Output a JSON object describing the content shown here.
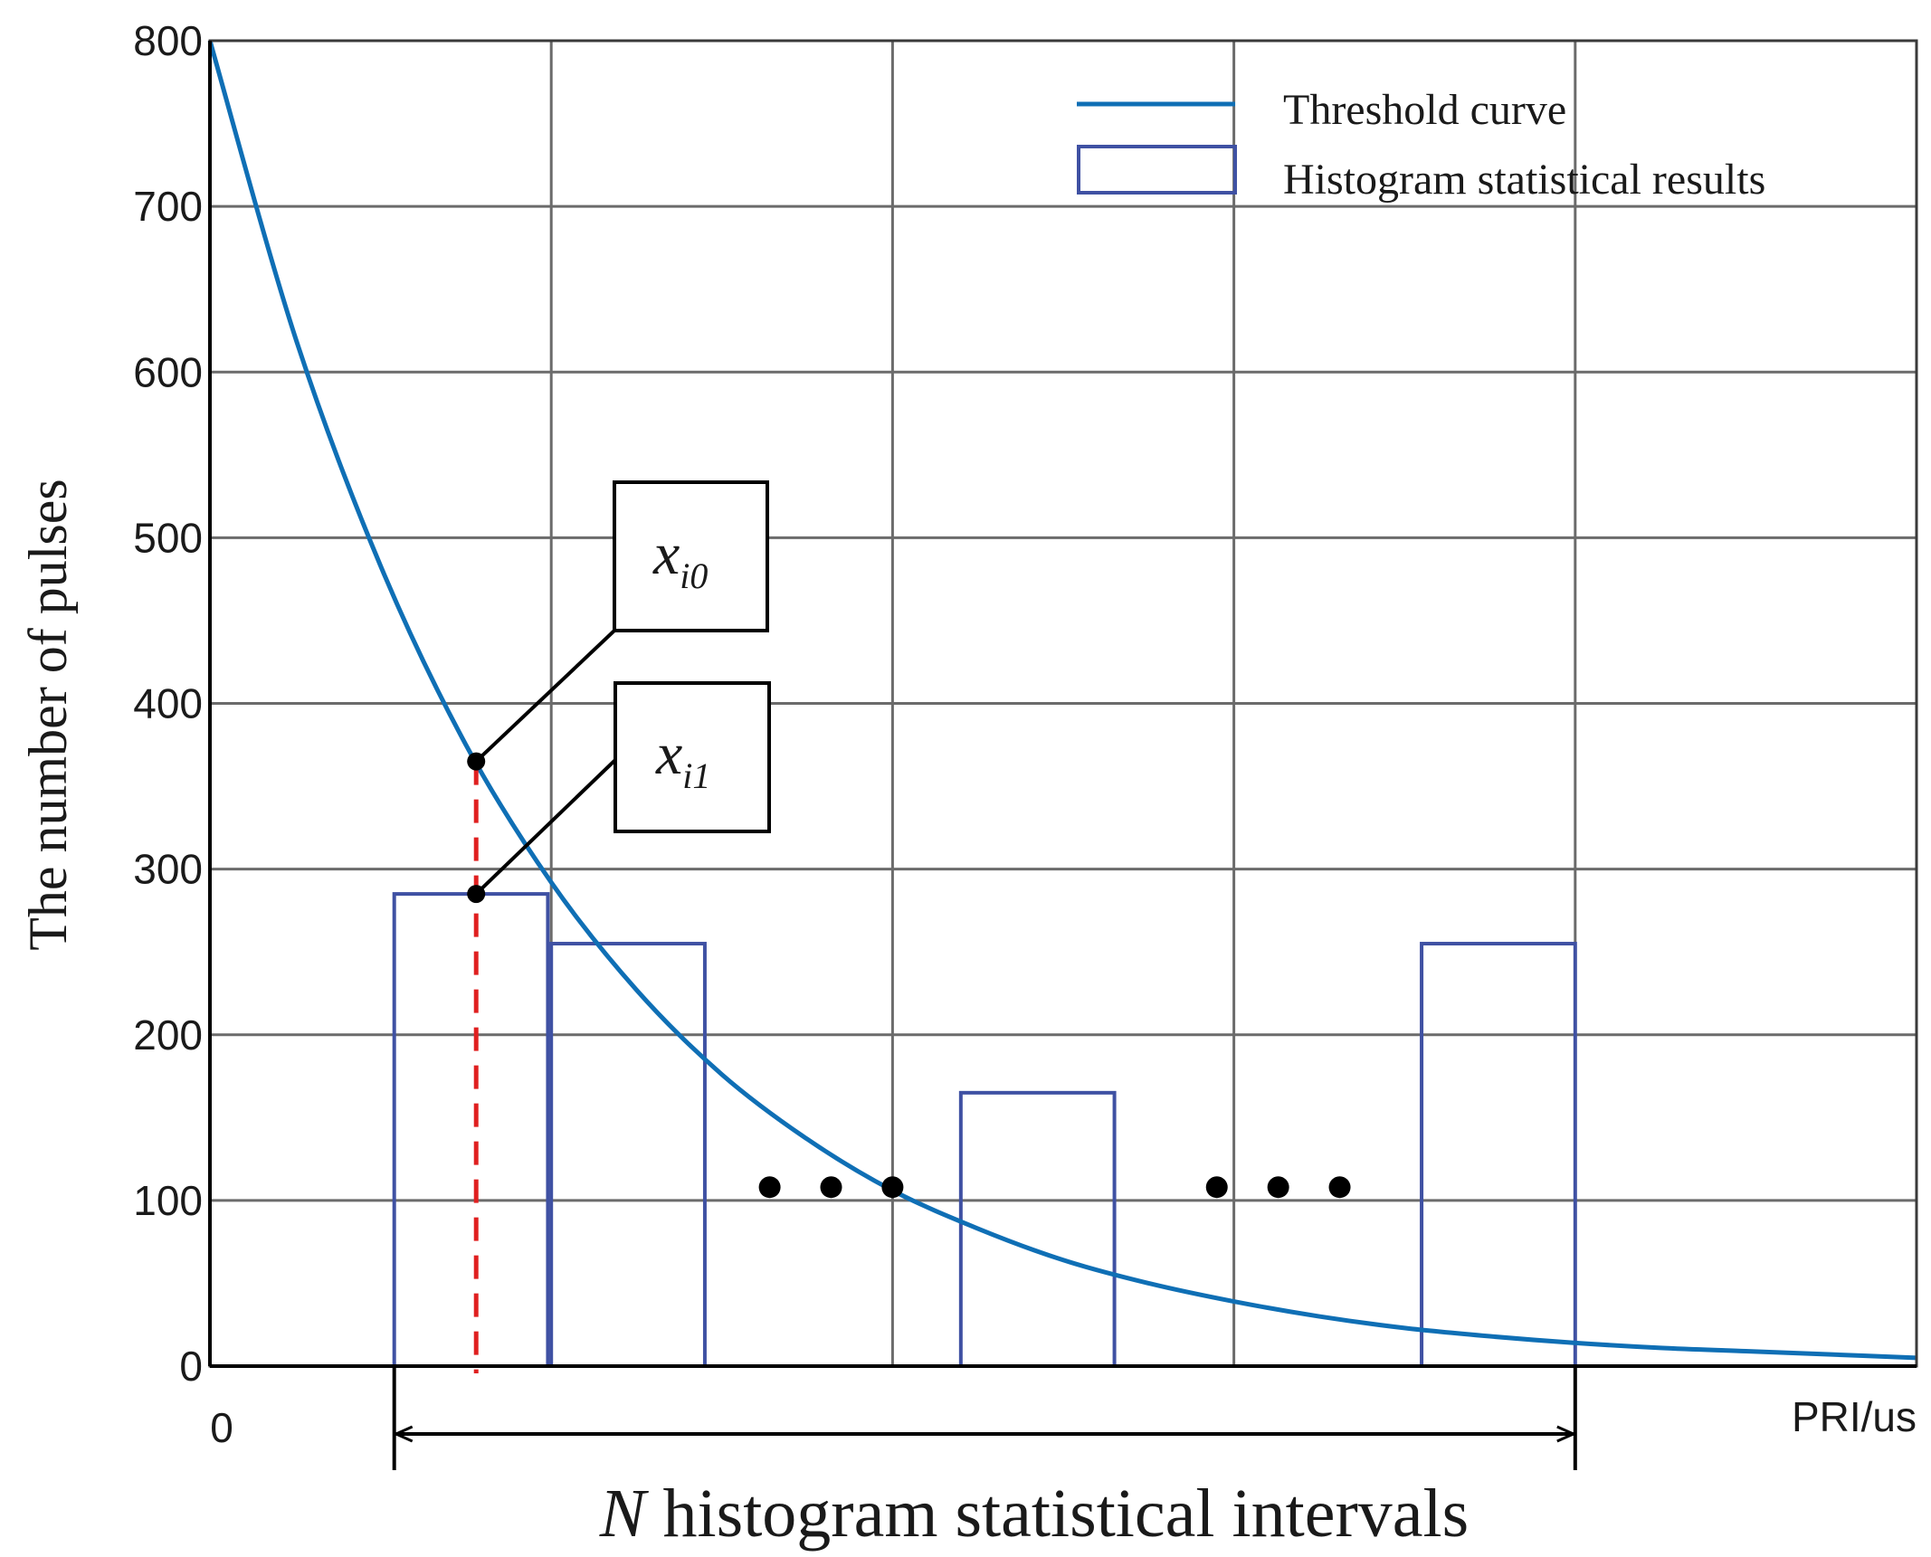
{
  "chart_data": {
    "type": "bar",
    "title": "",
    "xlabel": "PRI/us",
    "ylabel": "The number of pulses",
    "x_origin_label": "0",
    "ylim": [
      0,
      800
    ],
    "yticks": [
      0,
      100,
      200,
      300,
      400,
      500,
      600,
      700,
      800
    ],
    "xlim": [
      0,
      5
    ],
    "grid": true,
    "legend_position": "top-right",
    "series": [
      {
        "name": "Threshold curve",
        "kind": "line",
        "color": "#0f6fb5",
        "x": [
          0,
          0.25,
          0.5,
          0.75,
          1.0,
          1.25,
          1.5,
          1.75,
          2.0,
          2.25,
          2.5,
          2.75,
          3.0,
          3.25,
          3.5,
          3.75,
          4.0,
          4.25,
          4.5,
          4.75,
          5.0
        ],
        "y": [
          800,
          621,
          483,
          375,
          292,
          227,
          176,
          137,
          106,
          83,
          64,
          50,
          39,
          30,
          23,
          18,
          14,
          11,
          9,
          7,
          5
        ]
      },
      {
        "name": "Histogram statistical results",
        "kind": "bar",
        "color": "#3f51a3",
        "bars": [
          {
            "x_start": 0.54,
            "x_end": 0.99,
            "value": 285
          },
          {
            "x_start": 1.0,
            "x_end": 1.45,
            "value": 255
          },
          {
            "x_start": 2.2,
            "x_end": 2.65,
            "value": 165
          },
          {
            "x_start": 3.55,
            "x_end": 4.0,
            "value": 255
          }
        ]
      }
    ],
    "annotations": {
      "point_x0": {
        "label": "x",
        "subscript": "i0",
        "x": 0.78,
        "y": 365
      },
      "point_x1": {
        "label": "x",
        "subscript": "i1",
        "x": 0.78,
        "y": 285
      },
      "ellipsis_groups": [
        {
          "x": [
            1.64,
            1.82,
            2.0
          ],
          "y": 108
        },
        {
          "x": [
            2.95,
            3.13,
            3.31
          ],
          "y": 108
        }
      ],
      "interval_span": {
        "x_start": 0.54,
        "x_end": 4.0,
        "label_italic": "N",
        "label_rest": " histogram statistical intervals"
      },
      "divider_color": "#e02020"
    }
  }
}
